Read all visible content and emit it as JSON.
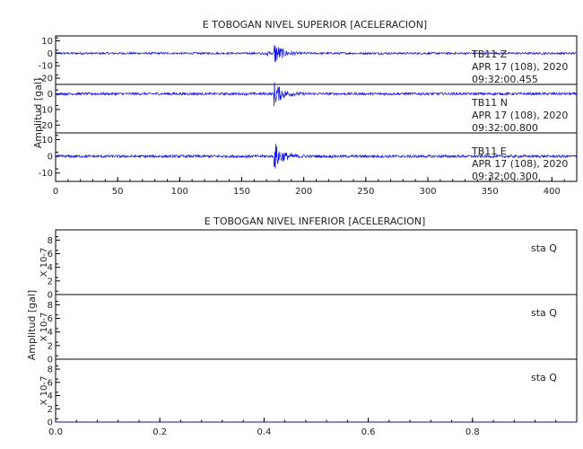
{
  "chart_data": [
    {
      "type": "line",
      "title": "E TOBOGAN NIVEL SUPERIOR [ACELERACION]",
      "ylabel": "Amplitud [gal]",
      "xlabel": "",
      "xlim": [
        0,
        420
      ],
      "x_ticks": [
        "0",
        "50",
        "100",
        "150",
        "200",
        "250",
        "300",
        "350",
        "400"
      ],
      "x_tick_values": [
        0,
        50,
        100,
        150,
        200,
        250,
        300,
        350,
        400
      ],
      "grid": false,
      "panels": [
        {
          "ylim": [
            -25,
            14
          ],
          "y_ticks": [
            "10",
            "0",
            "-10",
            "-20"
          ],
          "y_tick_values": [
            10,
            0,
            -10,
            -20
          ],
          "station": "TB11   Z",
          "date": "APR 17 (108), 2020",
          "time": "09:32:00.455",
          "event_start": 176,
          "peak_amplitude": 10,
          "noise_amplitude": 0.8
        },
        {
          "ylim": [
            -25,
            6
          ],
          "y_ticks": [
            "0",
            "-10",
            "-20"
          ],
          "y_tick_values": [
            0,
            -10,
            -20
          ],
          "station": "TB11   N",
          "date": "APR 17 (108), 2020",
          "time": "09:32:00.800",
          "event_start": 176,
          "peak_amplitude": 8,
          "noise_amplitude": 0.8
        },
        {
          "ylim": [
            -15,
            14
          ],
          "y_ticks": [
            "10",
            "0",
            "-10"
          ],
          "y_tick_values": [
            10,
            0,
            -10
          ],
          "station": "TB11   E",
          "date": "APR 17 (108), 2020",
          "time": "09:32:00.300",
          "event_start": 176,
          "peak_amplitude": 9,
          "noise_amplitude": 0.8
        }
      ]
    },
    {
      "type": "line",
      "title": "E TOBOGAN NIVEL INFERIOR [ACELERACION]",
      "ylabel": "Amplitud [gal]",
      "xlabel": "",
      "xlim": [
        0,
        1
      ],
      "x_ticks": [
        "0.0",
        "0.2",
        "0.4",
        "0.6",
        "0.8"
      ],
      "x_tick_values": [
        0,
        0.2,
        0.4,
        0.6,
        0.8
      ],
      "grid": false,
      "panels": [
        {
          "ylim": [
            0,
            9.5
          ],
          "y_ticks": [
            "8",
            "6",
            "4",
            "2",
            "0"
          ],
          "y_tick_values": [
            8,
            6,
            4,
            2,
            0
          ],
          "scale_label": "X 10-7",
          "station": "sta   Q",
          "values": [
            0,
            0
          ]
        },
        {
          "ylim": [
            0,
            9.5
          ],
          "y_ticks": [
            "8",
            "6",
            "4",
            "2",
            "0"
          ],
          "y_tick_values": [
            8,
            6,
            4,
            2,
            0
          ],
          "scale_label": "X 10-7",
          "station": "sta   Q",
          "values": [
            0,
            0
          ]
        },
        {
          "ylim": [
            0,
            9.5
          ],
          "y_ticks": [
            "8",
            "6",
            "4",
            "2",
            "0"
          ],
          "y_tick_values": [
            8,
            6,
            4,
            2,
            0
          ],
          "scale_label": "X 10-7",
          "station": "sta   Q",
          "values": [
            0,
            0
          ]
        }
      ]
    }
  ]
}
